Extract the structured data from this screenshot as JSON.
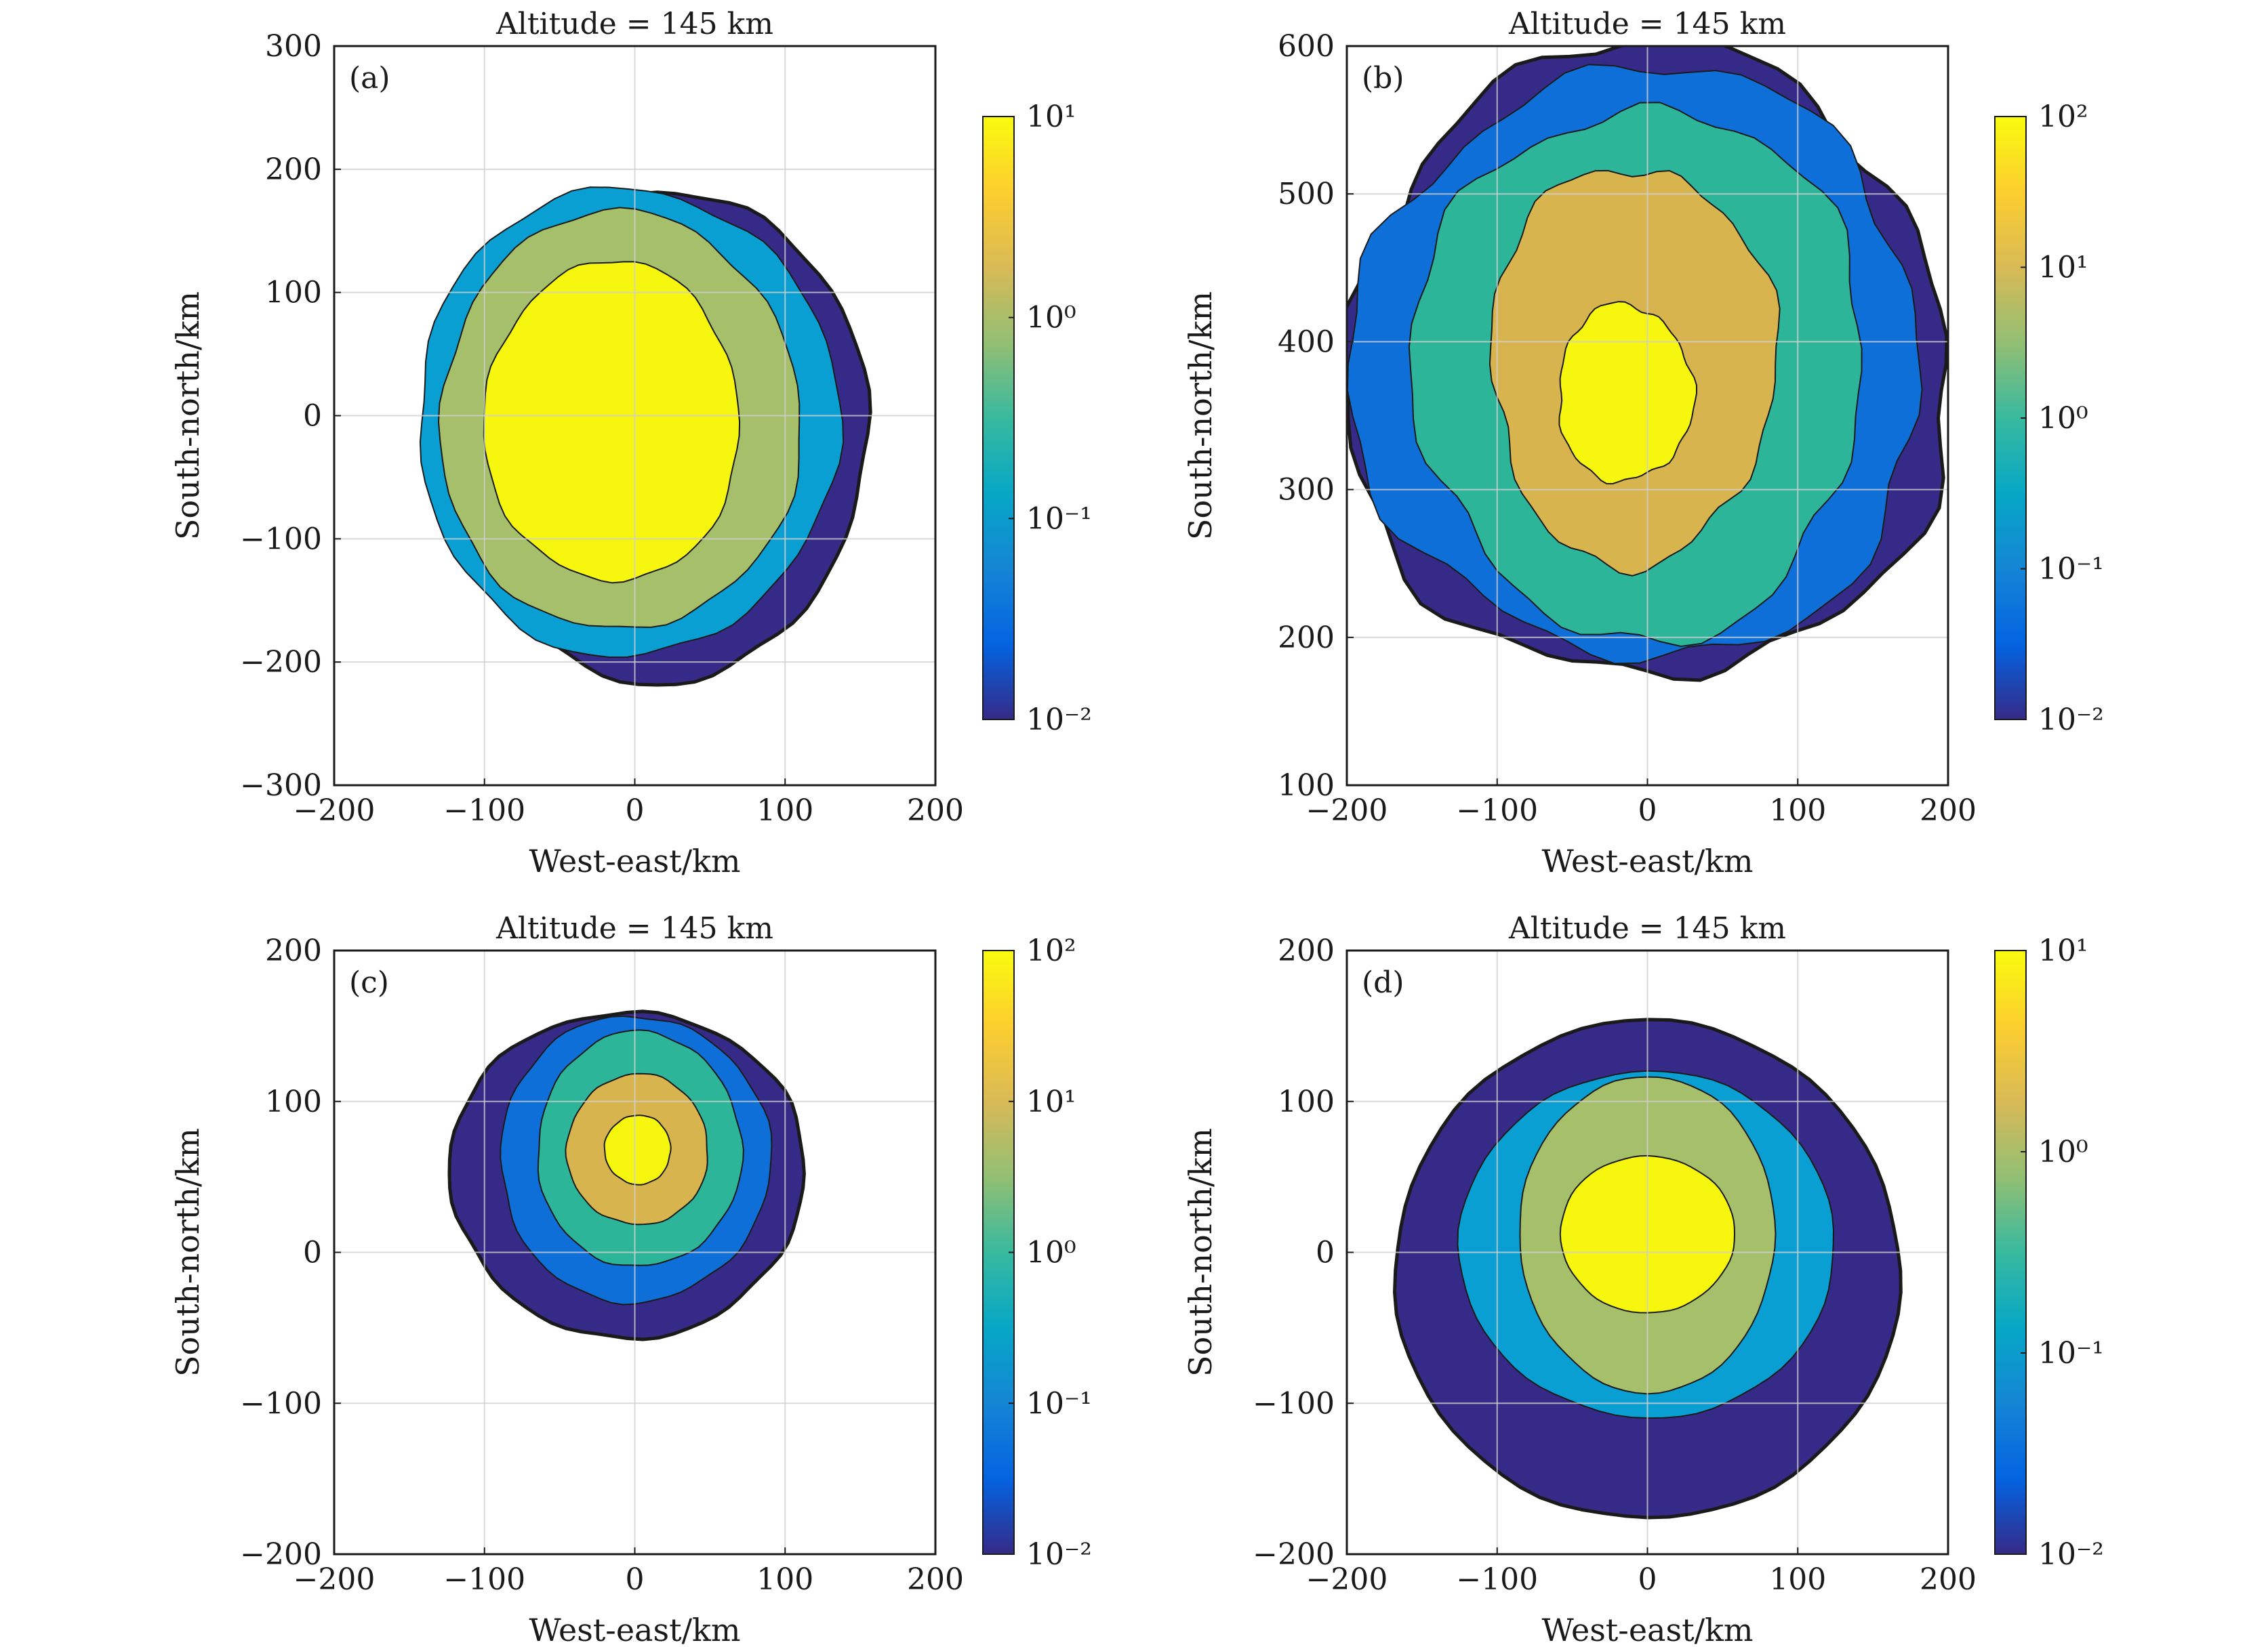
{
  "chart_data": [
    {
      "type": "contour",
      "panel_label": "(a)",
      "title": "Altitude = 145 km",
      "xlabel": "West-east/km",
      "ylabel": "South-north/km",
      "xlim": [
        -200,
        200
      ],
      "ylim": [
        -300,
        300
      ],
      "xticks": [
        "−200",
        "−100",
        "0",
        "100",
        "200"
      ],
      "xtick_values": [
        -200,
        -100,
        0,
        100,
        200
      ],
      "yticks": [
        "300",
        "200",
        "100",
        "0",
        "−100",
        "−200",
        "−300"
      ],
      "ytick_values": [
        300,
        200,
        100,
        0,
        -100,
        -200,
        -300
      ],
      "grid": true,
      "colorbar": {
        "scale": "log",
        "min": 0.01,
        "max": 10,
        "labels": [
          "10¹",
          "10⁰",
          "10⁻¹",
          "10⁻²"
        ],
        "values": [
          10,
          1,
          0.1,
          0.01
        ]
      },
      "levels": [
        {
          "level": 0.01,
          "color": "#352a87",
          "cx": 15,
          "cy": -15,
          "rx": 140,
          "ry": 200
        },
        {
          "level": 0.1,
          "color": "#099fd3",
          "cx": -5,
          "cy": -5,
          "rx": 140,
          "ry": 190
        },
        {
          "level": 1,
          "color": "#a6bf6a",
          "cx": -10,
          "cy": -5,
          "rx": 120,
          "ry": 170
        },
        {
          "level": 10,
          "color": "#f7f60f",
          "cx": -15,
          "cy": -5,
          "rx": 85,
          "ry": 130
        }
      ]
    },
    {
      "type": "contour",
      "panel_label": "(b)",
      "title": "Altitude = 145 km",
      "xlabel": "West-east/km",
      "ylabel": "South-north/km",
      "xlim": [
        -200,
        200
      ],
      "ylim": [
        100,
        600
      ],
      "xticks": [
        "−200",
        "−100",
        "0",
        "100",
        "200"
      ],
      "xtick_values": [
        -200,
        -100,
        0,
        100,
        200
      ],
      "yticks": [
        "600",
        "500",
        "400",
        "300",
        "200",
        "100"
      ],
      "ytick_values": [
        600,
        500,
        400,
        300,
        200,
        100
      ],
      "grid": true,
      "colorbar": {
        "scale": "log",
        "min": 0.01,
        "max": 100,
        "labels": [
          "10²",
          "10¹",
          "10⁰",
          "10⁻¹",
          "10⁻²"
        ],
        "values": [
          100,
          10,
          1,
          0.1,
          0.01
        ]
      },
      "levels": [
        {
          "level": 0.01,
          "color": "#352a87",
          "cx": 0,
          "cy": 385,
          "rx": 200,
          "ry": 215
        },
        {
          "level": 0.1,
          "color": "#0f6fd8",
          "cx": -5,
          "cy": 385,
          "rx": 190,
          "ry": 200
        },
        {
          "level": 1,
          "color": "#2db59a",
          "cx": -5,
          "cy": 380,
          "rx": 150,
          "ry": 180
        },
        {
          "level": 10,
          "color": "#d8b44f",
          "cx": -10,
          "cy": 385,
          "rx": 95,
          "ry": 135
        },
        {
          "level": 100,
          "color": "#f7f60f",
          "cx": -15,
          "cy": 365,
          "rx": 45,
          "ry": 60
        }
      ]
    },
    {
      "type": "contour",
      "panel_label": "(c)",
      "title": "Altitude = 145 km",
      "xlabel": "West-east/km",
      "ylabel": "South-north/km",
      "xlim": [
        -200,
        200
      ],
      "ylim": [
        -200,
        200
      ],
      "xticks": [
        "−200",
        "−100",
        "0",
        "100",
        "200"
      ],
      "xtick_values": [
        -200,
        -100,
        0,
        100,
        200
      ],
      "yticks": [
        "200",
        "100",
        "0",
        "−100",
        "−200"
      ],
      "ytick_values": [
        200,
        100,
        0,
        -100,
        -200
      ],
      "grid": true,
      "colorbar": {
        "scale": "log",
        "min": 0.01,
        "max": 100,
        "labels": [
          "10²",
          "10¹",
          "10⁰",
          "10⁻¹",
          "10⁻²"
        ],
        "values": [
          100,
          10,
          1,
          0.1,
          0.01
        ]
      },
      "levels": [
        {
          "level": 0.01,
          "color": "#352a87",
          "cx": -5,
          "cy": 52,
          "rx": 118,
          "ry": 108
        },
        {
          "level": 0.1,
          "color": "#0f6fd8",
          "cx": 0,
          "cy": 62,
          "rx": 90,
          "ry": 95
        },
        {
          "level": 1,
          "color": "#2db59a",
          "cx": 3,
          "cy": 68,
          "rx": 68,
          "ry": 78
        },
        {
          "level": 10,
          "color": "#d8b44f",
          "cx": 2,
          "cy": 68,
          "rx": 47,
          "ry": 50
        },
        {
          "level": 100,
          "color": "#f7f60f",
          "cx": 2,
          "cy": 68,
          "rx": 22,
          "ry": 23
        }
      ]
    },
    {
      "type": "contour",
      "panel_label": "(d)",
      "title": "Altitude = 145 km",
      "xlabel": "West-east/km",
      "ylabel": "South-north/km",
      "xlim": [
        -200,
        200
      ],
      "ylim": [
        -200,
        200
      ],
      "xticks": [
        "−200",
        "−100",
        "0",
        "100",
        "200"
      ],
      "xtick_values": [
        -200,
        -100,
        0,
        100,
        200
      ],
      "yticks": [
        "200",
        "100",
        "0",
        "−100",
        "−200"
      ],
      "ytick_values": [
        200,
        100,
        0,
        -100,
        -200
      ],
      "grid": true,
      "colorbar": {
        "scale": "log",
        "min": 0.01,
        "max": 10,
        "labels": [
          "10¹",
          "10⁰",
          "10⁻¹",
          "10⁻²"
        ],
        "values": [
          10,
          1,
          0.1,
          0.01
        ]
      },
      "levels": [
        {
          "level": 0.01,
          "color": "#352a87",
          "cx": 0,
          "cy": -12,
          "rx": 168,
          "ry": 165
        },
        {
          "level": 0.1,
          "color": "#099fd3",
          "cx": 0,
          "cy": 5,
          "rx": 125,
          "ry": 115
        },
        {
          "level": 1,
          "color": "#a6bf6a",
          "cx": 0,
          "cy": 12,
          "rx": 85,
          "ry": 105
        },
        {
          "level": 10,
          "color": "#f7f60f",
          "cx": 0,
          "cy": 12,
          "rx": 58,
          "ry": 52
        }
      ]
    }
  ],
  "colormap": [
    "#352a87",
    "#0363e1",
    "#1485d4",
    "#06a7c6",
    "#38b99e",
    "#92bf73",
    "#d9ba56",
    "#fcce2e",
    "#f9fb0e"
  ]
}
